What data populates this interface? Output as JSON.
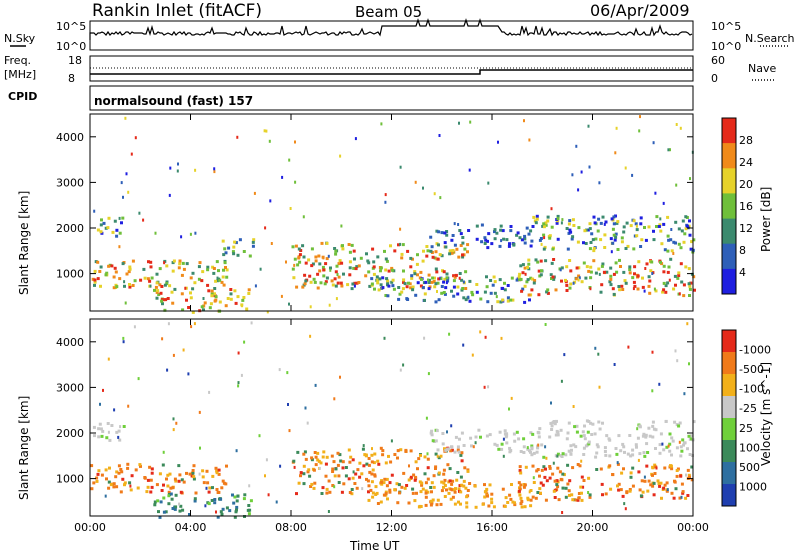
{
  "header": {
    "title": "Rankin Inlet (fitACF)",
    "beam": "Beam 05",
    "date": "06/Apr/2009"
  },
  "nsky_panel": {
    "label": "N.Sky",
    "right_label": "N.Search",
    "ticks_left": [
      "10^5",
      "10^0"
    ],
    "ticks_right": [
      "10^5",
      "10^0"
    ]
  },
  "freq_panel": {
    "label_line1": "Freq.",
    "label_line2": "[MHz]",
    "right_label": "Nave",
    "ticks_left": [
      "18",
      "8"
    ],
    "ticks_right": [
      "60",
      "0"
    ]
  },
  "cpid_panel": {
    "label": "CPID",
    "value": "normalsound (fast) 157"
  },
  "chart_data": [
    {
      "type": "heatmap",
      "name": "power",
      "ylabel": "Slant Range [km]",
      "xlabel": "",
      "x_ticks": [
        "00:00",
        "04:00",
        "08:00",
        "12:00",
        "16:00",
        "20:00",
        "00:00"
      ],
      "y_ticks": [
        1000,
        2000,
        3000,
        4000
      ],
      "ylim": [
        180,
        4500
      ],
      "xlim_hours": [
        0,
        24
      ],
      "colorbar": {
        "label": "Power [dB]",
        "tick_labels": [
          "4",
          "8",
          "12",
          "16",
          "20",
          "24",
          "28"
        ],
        "colors": [
          "#1f1fe0",
          "#2e5fb8",
          "#3b8a6e",
          "#6fbf3a",
          "#e6d22a",
          "#f08a1a",
          "#e52a1a"
        ]
      },
      "bands": [
        {
          "t": [
            0.0,
            1.4
          ],
          "range": [
            1850,
            2250
          ],
          "level": "mid"
        },
        {
          "t": [
            0.0,
            5.5
          ],
          "range": [
            700,
            1350
          ],
          "level": "high"
        },
        {
          "t": [
            2.5,
            6.4
          ],
          "range": [
            180,
            700
          ],
          "level": "high"
        },
        {
          "t": [
            5.0,
            6.5
          ],
          "range": [
            1400,
            1800
          ],
          "level": "mid"
        },
        {
          "t": [
            8.0,
            15.0
          ],
          "range": [
            700,
            1700
          ],
          "level": "high"
        },
        {
          "t": [
            11.0,
            17.5
          ],
          "range": [
            400,
            1000
          ],
          "level": "mid"
        },
        {
          "t": [
            13.5,
            17.5
          ],
          "range": [
            1600,
            2100
          ],
          "level": "low"
        },
        {
          "t": [
            17.5,
            24.0
          ],
          "range": [
            1500,
            2300
          ],
          "level": "mid"
        },
        {
          "t": [
            17.0,
            24.0
          ],
          "range": [
            550,
            1350
          ],
          "level": "high"
        }
      ]
    },
    {
      "type": "heatmap",
      "name": "velocity",
      "ylabel": "Slant Range [km]",
      "xlabel": "Time UT",
      "x_ticks": [
        "00:00",
        "04:00",
        "08:00",
        "12:00",
        "16:00",
        "20:00",
        "00:00"
      ],
      "y_ticks": [
        1000,
        2000,
        3000,
        4000
      ],
      "ylim": [
        180,
        4500
      ],
      "xlim_hours": [
        0,
        24
      ],
      "colorbar": {
        "label": "Velocity [m s^-1]",
        "tick_labels": [
          "1000",
          "500",
          "100",
          "25",
          "-25",
          "-100",
          "-500",
          "-1000"
        ],
        "colors": [
          "#1f3fb0",
          "#2e6fa0",
          "#3b8a5a",
          "#6fcf3a",
          "#c8c8c8",
          "#f2b01a",
          "#f07a1a",
          "#e52a1a"
        ]
      },
      "bands": [
        {
          "t": [
            0.0,
            1.4
          ],
          "range": [
            1850,
            2250
          ],
          "level": "ground"
        },
        {
          "t": [
            0.0,
            5.5
          ],
          "range": [
            700,
            1350
          ],
          "level": "neg"
        },
        {
          "t": [
            2.5,
            6.4
          ],
          "range": [
            180,
            700
          ],
          "level": "pos"
        },
        {
          "t": [
            8.0,
            15.0
          ],
          "range": [
            700,
            1700
          ],
          "level": "neg"
        },
        {
          "t": [
            11.0,
            17.5
          ],
          "range": [
            400,
            1000
          ],
          "level": "neg2"
        },
        {
          "t": [
            13.5,
            17.5
          ],
          "range": [
            1600,
            2100
          ],
          "level": "ground"
        },
        {
          "t": [
            17.5,
            24.0
          ],
          "range": [
            1500,
            2300
          ],
          "level": "ground"
        },
        {
          "t": [
            17.0,
            24.0
          ],
          "range": [
            550,
            1350
          ],
          "level": "neg"
        }
      ]
    }
  ]
}
